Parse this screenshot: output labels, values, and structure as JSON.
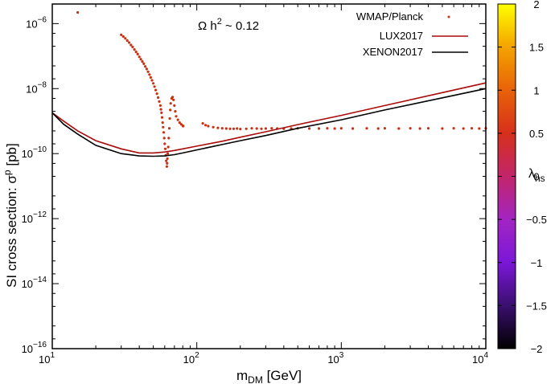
{
  "chart_data": {
    "type": "scatter",
    "title": "",
    "annotation": {
      "base": "Ω h",
      "sup": "2",
      "rest": " ~ 0.12"
    },
    "xlabel": {
      "base": "m",
      "sub": "DM",
      "rest": " [GeV]"
    },
    "ylabel": {
      "base": "SI cross section: σ",
      "sup": "p",
      "rest": " [pb]"
    },
    "x_scale": "log",
    "y_scale": "log",
    "xlim": [
      10,
      10000
    ],
    "ylim": [
      1e-16,
      4e-06
    ],
    "x_ticks": [
      {
        "value": 10,
        "base": "10",
        "exp": "1"
      },
      {
        "value": 100,
        "base": "10",
        "exp": "2"
      },
      {
        "value": 1000,
        "base": "10",
        "exp": "3"
      },
      {
        "value": 10000,
        "base": "10",
        "exp": "4"
      }
    ],
    "y_ticks": [
      {
        "value": 1e-16,
        "base": "10",
        "exp": "−16"
      },
      {
        "value": 1e-14,
        "base": "10",
        "exp": "−14"
      },
      {
        "value": 1e-12,
        "base": "10",
        "exp": "−12"
      },
      {
        "value": 1e-10,
        "base": "10",
        "exp": "−10"
      },
      {
        "value": 1e-08,
        "base": "10",
        "exp": "−8"
      },
      {
        "value": 1e-06,
        "base": "10",
        "exp": "−6"
      }
    ],
    "grid": false,
    "legend_position": "top-right",
    "colorbar": {
      "label_base": "λ",
      "label_sub": "hs",
      "range": [
        -2,
        2
      ],
      "ticks": [
        "2",
        "1.5",
        "1",
        "0.5",
        "0",
        "−0.5",
        "−1",
        "−1.5",
        "−2"
      ],
      "tick_values": [
        2,
        1.5,
        1,
        0.5,
        0,
        -0.5,
        -1,
        -1.5,
        -2
      ],
      "colors": [
        "#000000",
        "#3a0f6e",
        "#7b17d8",
        "#a325c2",
        "#c2256a",
        "#d6301c",
        "#e8620a",
        "#f4a300",
        "#ffff00"
      ]
    },
    "series": [
      {
        "name": "WMAP/Planck",
        "type": "scatter",
        "color": "#c83214",
        "points": [
          [
            15,
            2.2e-06
          ],
          [
            30,
            4.5e-07
          ],
          [
            31,
            4e-07
          ],
          [
            32,
            3.5e-07
          ],
          [
            33,
            3e-07
          ],
          [
            34,
            2.6e-07
          ],
          [
            35,
            2.2e-07
          ],
          [
            36,
            1.9e-07
          ],
          [
            37,
            1.6e-07
          ],
          [
            38,
            1.35e-07
          ],
          [
            39,
            1.15e-07
          ],
          [
            40,
            9.5e-08
          ],
          [
            41,
            8e-08
          ],
          [
            42,
            6.8e-08
          ],
          [
            43,
            5.8e-08
          ],
          [
            44,
            4.8e-08
          ],
          [
            45,
            4e-08
          ],
          [
            46,
            3.3e-08
          ],
          [
            47,
            2.7e-08
          ],
          [
            48,
            2.2e-08
          ],
          [
            49,
            1.8e-08
          ],
          [
            50,
            1.45e-08
          ],
          [
            51,
            1.15e-08
          ],
          [
            52,
            9e-09
          ],
          [
            53,
            7e-09
          ],
          [
            54,
            5.3e-09
          ],
          [
            55,
            4e-09
          ],
          [
            56,
            3e-09
          ],
          [
            56.5,
            2.3e-09
          ],
          [
            57,
            1.8e-09
          ],
          [
            57.5,
            1.3e-09
          ],
          [
            58,
            9e-10
          ],
          [
            58.5,
            6.5e-10
          ],
          [
            59,
            4.5e-10
          ],
          [
            59.5,
            3e-10
          ],
          [
            60,
            2e-10
          ],
          [
            60.5,
            1.4e-10
          ],
          [
            61,
            9e-11
          ],
          [
            61.5,
            6e-11
          ],
          [
            62,
            4e-11
          ],
          [
            62.3,
            5e-11
          ],
          [
            62.6,
            7e-11
          ],
          [
            63,
            1e-10
          ],
          [
            63.5,
            1.6e-10
          ],
          [
            64,
            3e-10
          ],
          [
            64.5,
            6e-10
          ],
          [
            65,
            1.2e-09
          ],
          [
            65.5,
            2.2e-09
          ],
          [
            66,
            3.5e-09
          ],
          [
            67,
            5e-09
          ],
          [
            68,
            5.5e-09
          ],
          [
            69,
            4.5e-09
          ],
          [
            70,
            3e-09
          ],
          [
            71,
            2e-09
          ],
          [
            72,
            1.4e-09
          ],
          [
            74,
            1.1e-09
          ],
          [
            76,
            9e-10
          ],
          [
            78,
            8e-10
          ],
          [
            80,
            7.2e-10
          ],
          [
            80.5,
            7e-10
          ],
          [
            110,
            8.5e-10
          ],
          [
            115,
            7.5e-10
          ],
          [
            120,
            7e-10
          ],
          [
            130,
            6.5e-10
          ],
          [
            140,
            6.2e-10
          ],
          [
            150,
            6e-10
          ],
          [
            160,
            5.9e-10
          ],
          [
            170,
            5.8e-10
          ],
          [
            180,
            5.8e-10
          ],
          [
            190,
            5.9e-10
          ],
          [
            200,
            5.7e-10
          ],
          [
            220,
            5.8e-10
          ],
          [
            240,
            6e-10
          ],
          [
            260,
            5.9e-10
          ],
          [
            280,
            5.8e-10
          ],
          [
            300,
            5.9e-10
          ],
          [
            330,
            6e-10
          ],
          [
            360,
            5.9e-10
          ],
          [
            400,
            5.8e-10
          ],
          [
            450,
            5.9e-10
          ],
          [
            500,
            6e-10
          ],
          [
            600,
            5.9e-10
          ],
          [
            700,
            5.9e-10
          ],
          [
            800,
            6e-10
          ],
          [
            900,
            5.9e-10
          ],
          [
            1000,
            6e-10
          ],
          [
            1200,
            5.9e-10
          ],
          [
            1500,
            6e-10
          ],
          [
            1800,
            5.9e-10
          ],
          [
            2000,
            6e-10
          ],
          [
            2500,
            5.9e-10
          ],
          [
            3000,
            6e-10
          ],
          [
            3500,
            5.9e-10
          ],
          [
            4000,
            6e-10
          ],
          [
            5000,
            5.9e-10
          ],
          [
            6000,
            6e-10
          ],
          [
            7000,
            5.9e-10
          ],
          [
            8000,
            6e-10
          ],
          [
            9000,
            5.9e-10
          ],
          [
            10000,
            6e-10
          ]
        ]
      },
      {
        "name": "LUX2017",
        "type": "line",
        "color": "#aa0a0a",
        "points": [
          [
            10,
            1.8e-09
          ],
          [
            12,
            1e-09
          ],
          [
            15,
            5e-10
          ],
          [
            20,
            2.5e-10
          ],
          [
            30,
            1.4e-10
          ],
          [
            40,
            1.05e-10
          ],
          [
            50,
            1.05e-10
          ],
          [
            60,
            1.12e-10
          ],
          [
            70,
            1.25e-10
          ],
          [
            80,
            1.4e-10
          ],
          [
            100,
            1.7e-10
          ],
          [
            150,
            2.4e-10
          ],
          [
            200,
            3.2e-10
          ],
          [
            300,
            4.7e-10
          ],
          [
            500,
            7.8e-10
          ],
          [
            1000,
            1.5e-09
          ],
          [
            2000,
            3e-09
          ],
          [
            5000,
            7.5e-09
          ],
          [
            10000,
            1.5e-08
          ]
        ]
      },
      {
        "name": "XENON2017",
        "type": "line",
        "color": "#000000",
        "points": [
          [
            10,
            1.8e-09
          ],
          [
            12,
            8e-10
          ],
          [
            15,
            4e-10
          ],
          [
            20,
            1.8e-10
          ],
          [
            30,
            1e-10
          ],
          [
            40,
            8.5e-11
          ],
          [
            50,
            8.3e-11
          ],
          [
            60,
            8.5e-11
          ],
          [
            70,
            9.3e-11
          ],
          [
            80,
            1.05e-10
          ],
          [
            100,
            1.3e-10
          ],
          [
            150,
            1.9e-10
          ],
          [
            200,
            2.5e-10
          ],
          [
            300,
            3.6e-10
          ],
          [
            500,
            6e-10
          ],
          [
            1000,
            1.1e-09
          ],
          [
            2000,
            2.2e-09
          ],
          [
            5000,
            5.2e-09
          ],
          [
            10000,
            1e-08
          ]
        ]
      }
    ]
  }
}
